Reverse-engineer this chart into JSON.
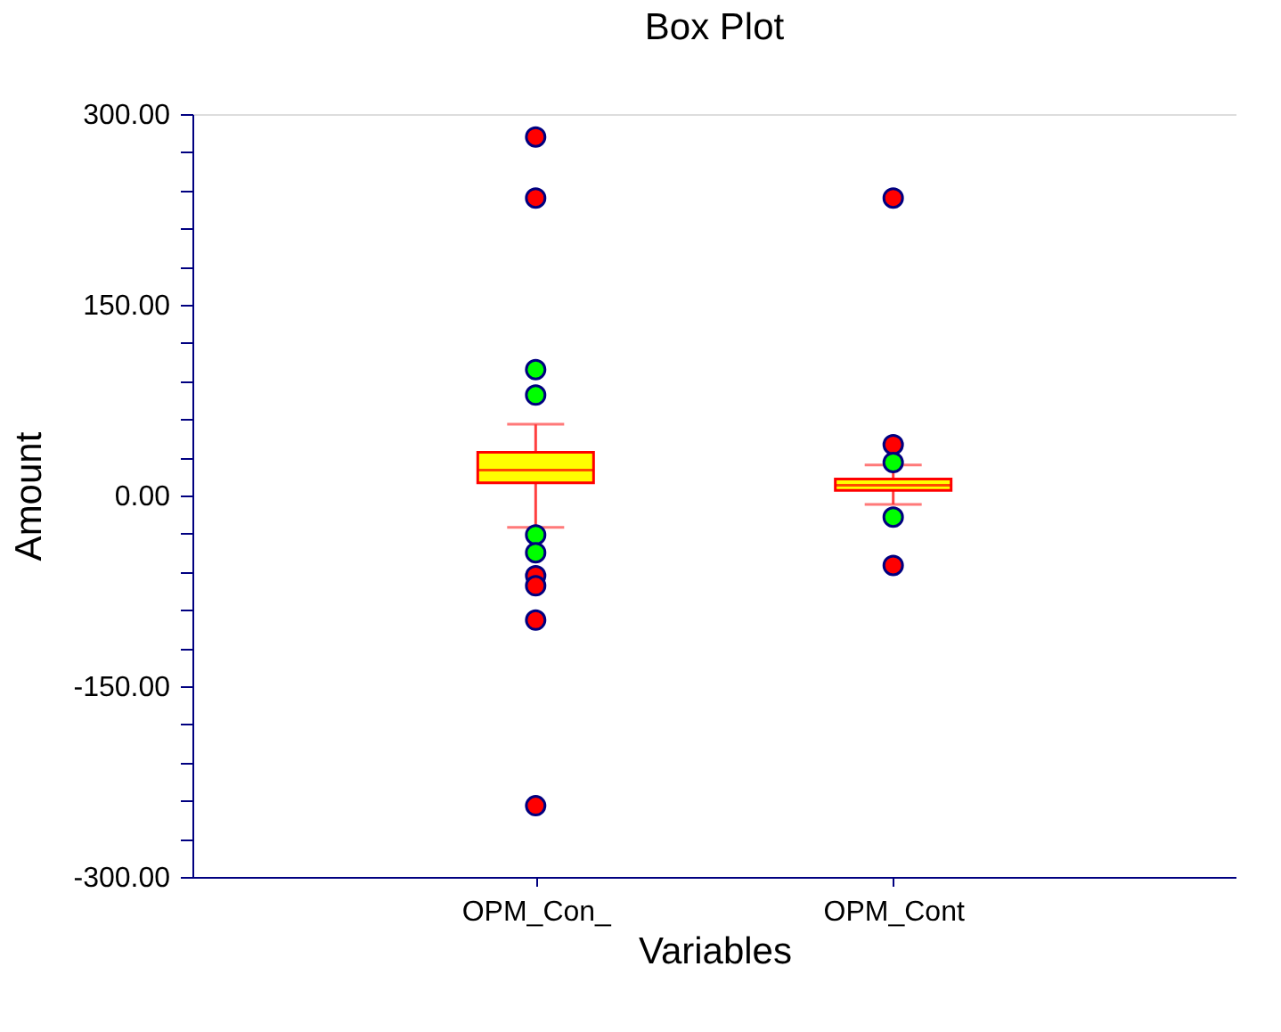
{
  "chart_data": {
    "type": "box",
    "title": "Box Plot",
    "xlabel": "Variables",
    "ylabel": "Amount",
    "categories": [
      "OPM_Con_",
      "OPM_Cont"
    ],
    "ylim": [
      -300,
      300
    ],
    "yticks": [
      {
        "value": -300,
        "label": "-300.00"
      },
      {
        "value": -270,
        "label": null
      },
      {
        "value": -240,
        "label": null
      },
      {
        "value": -210,
        "label": null
      },
      {
        "value": -180,
        "label": null
      },
      {
        "value": -150,
        "label": "-150.00"
      },
      {
        "value": -120,
        "label": null
      },
      {
        "value": -90,
        "label": null
      },
      {
        "value": -60,
        "label": null
      },
      {
        "value": -30,
        "label": null
      },
      {
        "value": 0,
        "label": "0.00"
      },
      {
        "value": 30,
        "label": null
      },
      {
        "value": 60,
        "label": null
      },
      {
        "value": 90,
        "label": null
      },
      {
        "value": 120,
        "label": null
      },
      {
        "value": 150,
        "label": "150.00"
      },
      {
        "value": 180,
        "label": null
      },
      {
        "value": 210,
        "label": null
      },
      {
        "value": 240,
        "label": null
      },
      {
        "value": 270,
        "label": null
      },
      {
        "value": 300,
        "label": "300.00"
      }
    ],
    "grid": false,
    "marker": "circle",
    "series": [
      {
        "type": "box",
        "color": "#ffff00",
        "boxes": [
          {
            "low": -25,
            "q1": 10,
            "median": 20,
            "q3": 34,
            "high": 56
          },
          {
            "low": -7,
            "q1": 4,
            "median": 8,
            "q3": 13,
            "high": 24
          }
        ]
      },
      {
        "type": "scatter",
        "color": "#ff0000",
        "x": [
          "OPM_Con_",
          "OPM_Con_",
          "OPM_Con_",
          "OPM_Con_",
          "OPM_Con_",
          "OPM_Con_",
          "OPM_Cont",
          "OPM_Cont",
          "OPM_Cont"
        ],
        "values": [
          282,
          234,
          -63,
          -71,
          -98,
          -244,
          234,
          40,
          -55
        ]
      },
      {
        "type": "scatter",
        "color": "#00ff00",
        "x": [
          "OPM_Con_",
          "OPM_Con_",
          "OPM_Con_",
          "OPM_Con_",
          "OPM_Cont",
          "OPM_Cont"
        ],
        "values": [
          99,
          79,
          -31,
          -45,
          26,
          -17
        ]
      }
    ]
  }
}
